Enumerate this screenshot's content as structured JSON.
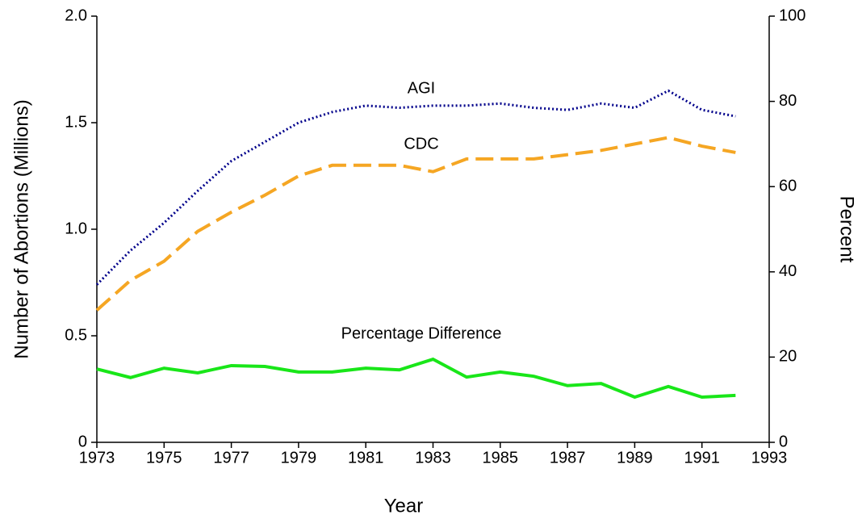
{
  "chart_data": {
    "type": "line",
    "x_label": "Year",
    "y_label": "Number of Abortions (Millions)",
    "y2_label": "Percent",
    "x": [
      1973,
      1974,
      1975,
      1976,
      1977,
      1978,
      1979,
      1980,
      1981,
      1982,
      1983,
      1984,
      1985,
      1986,
      1987,
      1988,
      1989,
      1990,
      1991,
      1992
    ],
    "series": [
      {
        "name": "AGI",
        "color": "#00008b",
        "dash": "dotted",
        "values": [
          0.74,
          0.9,
          1.03,
          1.18,
          1.32,
          1.41,
          1.5,
          1.55,
          1.58,
          1.57,
          1.58,
          1.58,
          1.59,
          1.57,
          1.56,
          1.59,
          1.57,
          1.65,
          1.56,
          1.53
        ]
      },
      {
        "name": "CDC",
        "color": "#f5a623",
        "dash": "dashed",
        "values": [
          0.62,
          0.76,
          0.85,
          0.99,
          1.08,
          1.16,
          1.25,
          1.3,
          1.3,
          1.3,
          1.27,
          1.33,
          1.33,
          1.33,
          1.35,
          1.37,
          1.4,
          1.43,
          1.39,
          1.36
        ]
      },
      {
        "name": "Percentage Difference",
        "color": "#19e619",
        "dash": "solid",
        "axis": "y2",
        "values": [
          17.2,
          15.2,
          17.4,
          16.3,
          18.0,
          17.8,
          16.5,
          16.5,
          17.4,
          17.0,
          19.5,
          15.3,
          16.5,
          15.5,
          13.3,
          13.8,
          10.6,
          13.1,
          10.6,
          11.0
        ]
      }
    ],
    "xlim": [
      1973,
      1993
    ],
    "xticks": [
      1973,
      1975,
      1977,
      1979,
      1981,
      1983,
      1985,
      1987,
      1989,
      1991,
      1993
    ],
    "ylim": [
      0,
      2
    ],
    "yticks": [
      0,
      0.5,
      {
        "value": 1,
        "label": "1.0"
      },
      1.5,
      {
        "value": 2,
        "label": "2.0"
      }
    ],
    "y2lim": [
      0,
      100
    ],
    "y2ticks": [
      0,
      20,
      40,
      60,
      80,
      100
    ]
  }
}
